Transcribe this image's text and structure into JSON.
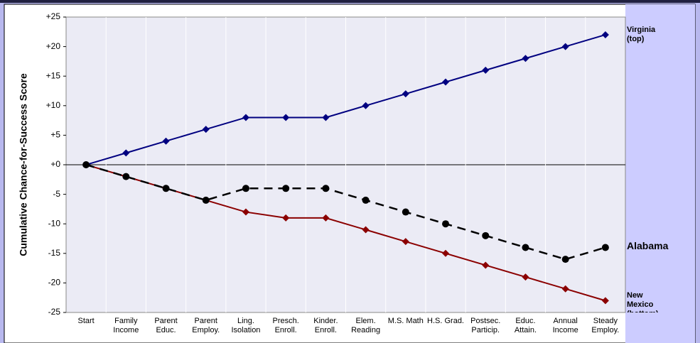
{
  "chart_data": {
    "type": "line",
    "y_label": "Cumulative Chance-for-Success Score",
    "categories": [
      "Start",
      "Family Income",
      "Parent Educ.",
      "Parent Employ.",
      "Ling. Isolation",
      "Presch. Enroll.",
      "Kinder. Enroll.",
      "Elem. Reading",
      "M.S. Math",
      "H.S. Grad.",
      "Postsec. Particip.",
      "Educ. Attain.",
      "Annual Income",
      "Steady Employ."
    ],
    "series": [
      {
        "name": "Virginia (top)",
        "color": "#000080",
        "dashed": false,
        "marker": "diamond",
        "values": [
          0,
          2,
          4,
          6,
          8,
          8,
          8,
          10,
          12,
          14,
          16,
          18,
          20,
          22
        ]
      },
      {
        "name": "New Mexico (bottom)",
        "color": "#8b0000",
        "dashed": false,
        "marker": "diamond",
        "values": [
          0,
          -2,
          -4,
          -6,
          -8,
          -9,
          -9,
          -11,
          -13,
          -15,
          -17,
          -19,
          -21,
          -23
        ]
      },
      {
        "name": "Alabama",
        "color": "#000000",
        "dashed": true,
        "marker": "circle",
        "values": [
          0,
          -2,
          -4,
          -6,
          -4,
          -4,
          -4,
          -6,
          -8,
          -10,
          -12,
          -14,
          -16,
          -14
        ]
      }
    ],
    "ylim": [
      -25,
      25
    ],
    "yticks": [
      {
        "value": 25,
        "label": "+25"
      },
      {
        "value": 20,
        "label": "+20"
      },
      {
        "value": 15,
        "label": "+15"
      },
      {
        "value": 10,
        "label": "+10"
      },
      {
        "value": 5,
        "label": "+5"
      },
      {
        "value": 0,
        "label": "+0"
      },
      -5,
      -10,
      -15,
      -20,
      -25
    ],
    "grid": true
  }
}
